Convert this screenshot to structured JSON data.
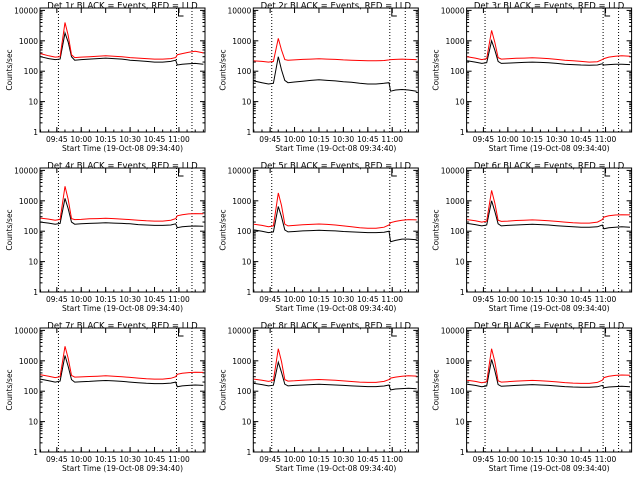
{
  "common": {
    "type": "line",
    "xlabel": "Start Time (19-Oct-08 09:34:40)",
    "ylabel": "Counts/sec",
    "y_scale": "log",
    "ylim": [
      1,
      12000
    ],
    "y_ticks": [
      1,
      10,
      100,
      1000,
      10000
    ],
    "y_tick_labels": [
      "1",
      "10",
      "100",
      "1000",
      "10000"
    ],
    "x_tick_labels": [
      "09:45",
      "10:00",
      "10:15",
      "10:30",
      "10:45",
      "11:00"
    ],
    "x_tick_minutes": [
      585,
      600,
      615,
      630,
      645,
      660
    ],
    "xlim_minutes": [
      574.67,
      676
    ],
    "vlines_minutes": [
      586,
      658.5,
      668
    ],
    "colors": {
      "events": "#000000",
      "lld": "#ff0000"
    }
  },
  "chart_data": [
    {
      "type": "line",
      "title": "Det 1r BLACK = Events, RED = LLD",
      "series": [
        {
          "color": "#000000",
          "x": [
            575,
            580,
            584,
            587,
            590,
            592,
            594,
            596,
            600,
            605,
            610,
            615,
            620,
            625,
            630,
            635,
            640,
            645,
            650,
            655,
            658,
            659,
            662,
            666,
            670,
            675
          ],
          "y": [
            300,
            260,
            240,
            250,
            1800,
            900,
            300,
            230,
            240,
            250,
            260,
            270,
            260,
            250,
            230,
            220,
            210,
            200,
            200,
            210,
            230,
            160,
            170,
            175,
            180,
            170
          ]
        },
        {
          "color": "#ff0000",
          "x": [
            575,
            580,
            584,
            587,
            590,
            592,
            594,
            596,
            600,
            605,
            610,
            615,
            620,
            625,
            630,
            635,
            640,
            645,
            650,
            655,
            658,
            659,
            662,
            666,
            670,
            675
          ],
          "y": [
            380,
            320,
            290,
            300,
            4000,
            1500,
            350,
            280,
            290,
            300,
            310,
            320,
            310,
            300,
            280,
            270,
            260,
            250,
            250,
            260,
            280,
            350,
            380,
            420,
            450,
            400
          ]
        }
      ]
    },
    {
      "type": "line",
      "title": "Det 2r BLACK = Events, RED = LLD",
      "series": [
        {
          "color": "#000000",
          "x": [
            575,
            580,
            584,
            587,
            590,
            592,
            594,
            596,
            600,
            605,
            610,
            615,
            620,
            625,
            630,
            635,
            640,
            645,
            650,
            655,
            658,
            659,
            662,
            666,
            670,
            675
          ],
          "y": [
            48,
            42,
            38,
            40,
            300,
            110,
            50,
            42,
            44,
            47,
            50,
            52,
            50,
            48,
            45,
            43,
            40,
            38,
            38,
            40,
            42,
            22,
            24,
            25,
            24,
            22
          ]
        },
        {
          "color": "#ff0000",
          "x": [
            575,
            580,
            584,
            587,
            590,
            592,
            594,
            596,
            600,
            605,
            610,
            615,
            620,
            625,
            630,
            635,
            640,
            645,
            650,
            655,
            658,
            659,
            662,
            666,
            670,
            675
          ],
          "y": [
            220,
            210,
            200,
            210,
            1200,
            500,
            240,
            230,
            235,
            245,
            250,
            255,
            250,
            245,
            235,
            230,
            225,
            220,
            220,
            225,
            235,
            240,
            245,
            250,
            245,
            240
          ]
        }
      ]
    },
    {
      "type": "line",
      "title": "Det 3r BLACK = Events, RED = LLD",
      "series": [
        {
          "color": "#000000",
          "x": [
            575,
            580,
            584,
            587,
            590,
            592,
            594,
            596,
            600,
            605,
            610,
            615,
            620,
            625,
            630,
            635,
            640,
            645,
            650,
            655,
            658,
            659,
            662,
            666,
            670,
            675
          ],
          "y": [
            220,
            200,
            180,
            190,
            1000,
            500,
            210,
            180,
            185,
            190,
            195,
            200,
            195,
            190,
            180,
            170,
            165,
            160,
            158,
            160,
            175,
            160,
            165,
            170,
            170,
            165
          ]
        },
        {
          "color": "#ff0000",
          "x": [
            575,
            580,
            584,
            587,
            590,
            592,
            594,
            596,
            600,
            605,
            610,
            615,
            620,
            625,
            630,
            635,
            640,
            645,
            650,
            655,
            658,
            659,
            662,
            666,
            670,
            675
          ],
          "y": [
            300,
            270,
            240,
            260,
            2200,
            900,
            280,
            250,
            255,
            265,
            270,
            275,
            270,
            260,
            245,
            230,
            220,
            210,
            200,
            205,
            240,
            260,
            290,
            310,
            320,
            310
          ]
        }
      ]
    },
    {
      "type": "line",
      "title": "Det 4r BLACK = Events, RED = LLD",
      "series": [
        {
          "color": "#000000",
          "x": [
            575,
            580,
            584,
            587,
            590,
            592,
            594,
            596,
            600,
            605,
            610,
            615,
            620,
            625,
            630,
            635,
            640,
            645,
            650,
            655,
            658,
            659,
            662,
            666,
            670,
            675
          ],
          "y": [
            200,
            185,
            170,
            180,
            1200,
            550,
            200,
            170,
            175,
            180,
            185,
            190,
            185,
            180,
            175,
            165,
            160,
            155,
            155,
            160,
            175,
            130,
            140,
            145,
            148,
            145
          ]
        },
        {
          "color": "#ff0000",
          "x": [
            575,
            580,
            584,
            587,
            590,
            592,
            594,
            596,
            600,
            605,
            610,
            615,
            620,
            625,
            630,
            635,
            640,
            645,
            650,
            655,
            658,
            659,
            662,
            666,
            670,
            675
          ],
          "y": [
            270,
            250,
            230,
            245,
            3000,
            1100,
            260,
            240,
            245,
            255,
            260,
            265,
            260,
            250,
            240,
            230,
            220,
            215,
            215,
            230,
            260,
            320,
            350,
            370,
            380,
            375
          ]
        }
      ]
    },
    {
      "type": "line",
      "title": "Det 5r BLACK = Events, RED = LLD",
      "series": [
        {
          "color": "#000000",
          "x": [
            575,
            580,
            584,
            587,
            590,
            592,
            594,
            596,
            600,
            605,
            610,
            615,
            620,
            625,
            630,
            635,
            640,
            645,
            650,
            655,
            658,
            659,
            662,
            666,
            670,
            675
          ],
          "y": [
            110,
            100,
            90,
            95,
            650,
            300,
            110,
            95,
            98,
            102,
            105,
            108,
            105,
            102,
            98,
            95,
            92,
            90,
            90,
            92,
            100,
            45,
            50,
            55,
            55,
            52
          ]
        },
        {
          "color": "#ff0000",
          "x": [
            575,
            580,
            584,
            587,
            590,
            592,
            594,
            596,
            600,
            605,
            610,
            615,
            620,
            625,
            630,
            635,
            640,
            645,
            650,
            655,
            658,
            659,
            662,
            666,
            670,
            675
          ],
          "y": [
            170,
            155,
            140,
            150,
            1800,
            700,
            170,
            150,
            155,
            162,
            168,
            172,
            168,
            160,
            150,
            140,
            130,
            125,
            125,
            135,
            160,
            190,
            210,
            230,
            240,
            235
          ]
        }
      ]
    },
    {
      "type": "line",
      "title": "Det 6r BLACK = Events, RED = LLD",
      "series": [
        {
          "color": "#000000",
          "x": [
            575,
            580,
            584,
            587,
            590,
            592,
            594,
            596,
            600,
            605,
            610,
            615,
            620,
            625,
            630,
            635,
            640,
            645,
            650,
            655,
            658,
            659,
            662,
            666,
            670,
            675
          ],
          "y": [
            180,
            165,
            150,
            160,
            1000,
            450,
            175,
            150,
            155,
            160,
            165,
            170,
            165,
            160,
            152,
            145,
            140,
            135,
            135,
            140,
            160,
            120,
            130,
            135,
            140,
            135
          ]
        },
        {
          "color": "#ff0000",
          "x": [
            575,
            580,
            584,
            587,
            590,
            592,
            594,
            596,
            600,
            605,
            610,
            615,
            620,
            625,
            630,
            635,
            640,
            645,
            650,
            655,
            658,
            659,
            662,
            666,
            670,
            675
          ],
          "y": [
            240,
            220,
            200,
            215,
            2200,
            850,
            230,
            210,
            215,
            225,
            230,
            235,
            230,
            220,
            210,
            200,
            190,
            185,
            185,
            200,
            240,
            290,
            320,
            340,
            350,
            345
          ]
        }
      ]
    },
    {
      "type": "line",
      "title": "Det 7r BLACK = Events, RED = LLD",
      "series": [
        {
          "color": "#000000",
          "x": [
            575,
            580,
            584,
            587,
            590,
            592,
            594,
            596,
            600,
            605,
            610,
            615,
            620,
            625,
            630,
            635,
            640,
            645,
            650,
            655,
            658,
            659,
            662,
            666,
            670,
            675
          ],
          "y": [
            250,
            220,
            200,
            215,
            1500,
            650,
            240,
            200,
            205,
            210,
            218,
            225,
            218,
            210,
            200,
            190,
            182,
            178,
            178,
            185,
            200,
            140,
            150,
            155,
            160,
            155
          ]
        },
        {
          "color": "#ff0000",
          "x": [
            575,
            580,
            584,
            587,
            590,
            592,
            594,
            596,
            600,
            605,
            610,
            615,
            620,
            625,
            630,
            635,
            640,
            645,
            650,
            655,
            658,
            659,
            662,
            666,
            670,
            675
          ],
          "y": [
            350,
            310,
            280,
            300,
            3000,
            1200,
            330,
            290,
            295,
            305,
            312,
            320,
            312,
            300,
            285,
            270,
            258,
            250,
            250,
            265,
            300,
            360,
            390,
            410,
            420,
            415
          ]
        }
      ]
    },
    {
      "type": "line",
      "title": "Det 8r BLACK = Events, RED = LLD",
      "series": [
        {
          "color": "#000000",
          "x": [
            575,
            580,
            584,
            587,
            590,
            592,
            594,
            596,
            600,
            605,
            610,
            615,
            620,
            625,
            630,
            635,
            640,
            645,
            650,
            655,
            658,
            659,
            662,
            666,
            670,
            675
          ],
          "y": [
            180,
            165,
            150,
            158,
            900,
            420,
            170,
            150,
            155,
            160,
            165,
            170,
            165,
            160,
            155,
            150,
            145,
            142,
            142,
            148,
            160,
            110,
            118,
            122,
            125,
            120
          ]
        },
        {
          "color": "#ff0000",
          "x": [
            575,
            580,
            584,
            587,
            590,
            592,
            594,
            596,
            600,
            605,
            610,
            615,
            620,
            625,
            630,
            635,
            640,
            645,
            650,
            655,
            658,
            659,
            662,
            666,
            670,
            675
          ],
          "y": [
            250,
            230,
            210,
            225,
            2500,
            950,
            240,
            215,
            220,
            230,
            236,
            242,
            236,
            228,
            218,
            208,
            200,
            195,
            195,
            210,
            240,
            270,
            290,
            310,
            320,
            315
          ]
        }
      ]
    },
    {
      "type": "line",
      "title": "Det 9r BLACK = Events, RED = LLD",
      "series": [
        {
          "color": "#000000",
          "x": [
            575,
            580,
            584,
            587,
            590,
            592,
            594,
            596,
            600,
            605,
            610,
            615,
            620,
            625,
            630,
            635,
            640,
            645,
            650,
            655,
            658,
            659,
            662,
            666,
            670,
            675
          ],
          "y": [
            170,
            155,
            140,
            150,
            1100,
            480,
            165,
            145,
            150,
            155,
            160,
            165,
            160,
            155,
            148,
            142,
            138,
            135,
            135,
            140,
            155,
            130,
            138,
            142,
            145,
            140
          ]
        },
        {
          "color": "#ff0000",
          "x": [
            575,
            580,
            584,
            587,
            590,
            592,
            594,
            596,
            600,
            605,
            610,
            615,
            620,
            625,
            630,
            635,
            640,
            645,
            650,
            655,
            658,
            659,
            662,
            666,
            670,
            675
          ],
          "y": [
            230,
            210,
            190,
            205,
            2500,
            950,
            220,
            200,
            205,
            215,
            220,
            226,
            220,
            212,
            202,
            192,
            185,
            180,
            180,
            195,
            230,
            280,
            310,
            330,
            340,
            335
          ]
        }
      ]
    }
  ]
}
